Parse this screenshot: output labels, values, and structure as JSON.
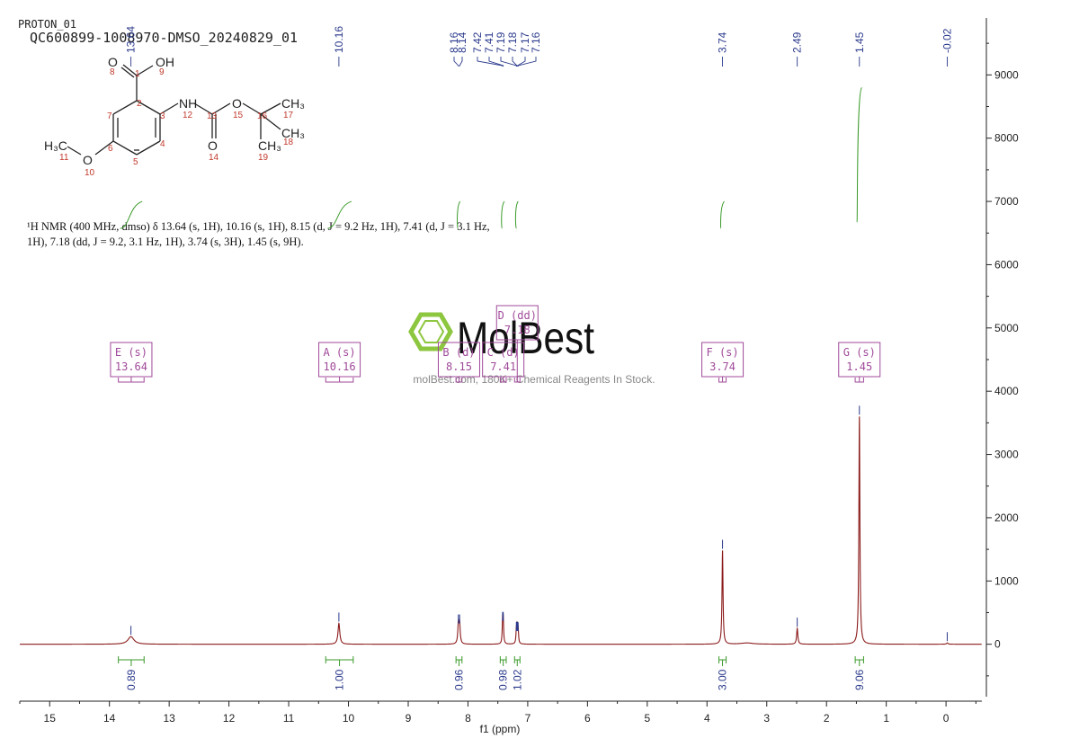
{
  "header": {
    "experiment": "PROTON_01",
    "sample": "QC600899-1008970-DMSO_20240829_01"
  },
  "summary": {
    "line1": "¹H NMR (400 MHz, dmso) δ 13.64 (s, 1H), 10.16 (s, 1H), 8.15 (d, J = 9.2 Hz, 1H), 7.41 (d, J = 3.1 Hz,",
    "line2": "1H), 7.18 (dd, J = 9.2, 3.1 Hz, 1H), 3.74 (s, 3H), 1.45 (s, 9H)."
  },
  "watermark": {
    "logo_text": "MolBest",
    "tagline": "molBest.com, 180K+ Chemical Reagents In Stock.",
    "color": "#8dc63f"
  },
  "structure": {
    "atoms": {
      "carbonyl_O": "O",
      "hydroxyl": "OH",
      "amine": "NH",
      "ester_O": "O",
      "keto_O": "O",
      "methoxy_O": "O",
      "methoxy_C": "H₃C",
      "ch3_a": "CH₃",
      "ch3_b": "CH₃",
      "ch3_c": "CH₃"
    },
    "numbers": [
      "1",
      "2",
      "3",
      "4",
      "5",
      "6",
      "7",
      "8",
      "9",
      "10",
      "11",
      "12",
      "13",
      "14",
      "15",
      "16",
      "17",
      "18",
      "19"
    ]
  },
  "colors": {
    "spectrum": "#8b1a1a",
    "peak_label": "#2b3a8c",
    "integral_curve": "#3a9a2a",
    "multiplet_box": "#a04a9a",
    "atom_number": "#c0392b"
  },
  "chart_data": {
    "type": "line",
    "xlabel": "f1 (ppm)",
    "xlim": [
      15.5,
      -0.6
    ],
    "ylim": [
      -900,
      9900
    ],
    "x_ticks": [
      "15",
      "14",
      "13",
      "12",
      "11",
      "10",
      "9",
      "8",
      "7",
      "6",
      "5",
      "4",
      "3",
      "2",
      "1",
      "0"
    ],
    "y_ticks": [
      "0",
      "1000",
      "2000",
      "3000",
      "4000",
      "5000",
      "6000",
      "7000",
      "8000",
      "9000"
    ],
    "peak_labels": [
      "13.64",
      "10.16",
      "8.16",
      "8.14",
      "7.42",
      "7.41",
      "7.19",
      "7.18",
      "7.17",
      "7.16",
      "3.74",
      "2.49",
      "1.45",
      "-0.02"
    ],
    "peaks": [
      {
        "ppm": 13.64,
        "height": 120,
        "width": 0.06
      },
      {
        "ppm": 10.16,
        "height": 330,
        "width": 0.018
      },
      {
        "ppm": 8.16,
        "height": 300,
        "width": 0.012
      },
      {
        "ppm": 8.14,
        "height": 300,
        "width": 0.012
      },
      {
        "ppm": 7.42,
        "height": 340,
        "width": 0.008
      },
      {
        "ppm": 7.41,
        "height": 340,
        "width": 0.008
      },
      {
        "ppm": 7.19,
        "height": 180,
        "width": 0.008
      },
      {
        "ppm": 7.18,
        "height": 185,
        "width": 0.008
      },
      {
        "ppm": 7.17,
        "height": 180,
        "width": 0.008
      },
      {
        "ppm": 7.16,
        "height": 175,
        "width": 0.008
      },
      {
        "ppm": 3.74,
        "height": 1480,
        "width": 0.01
      },
      {
        "ppm": 3.33,
        "height": 20,
        "width": 0.12
      },
      {
        "ppm": 2.49,
        "height": 250,
        "width": 0.012
      },
      {
        "ppm": 1.45,
        "height": 3600,
        "width": 0.01
      },
      {
        "ppm": -0.02,
        "height": 20,
        "width": 0.015
      }
    ],
    "multiplets": [
      {
        "label": "E (s)",
        "shift": "13.64",
        "range": [
          13.85,
          13.42
        ]
      },
      {
        "label": "A (s)",
        "shift": "10.16",
        "range": [
          10.38,
          9.92
        ]
      },
      {
        "label": "B (d)",
        "shift": "8.15",
        "range": [
          8.2,
          8.1
        ]
      },
      {
        "label": "C (d)",
        "shift": "7.41",
        "range": [
          7.46,
          7.36
        ]
      },
      {
        "label": "D (dd)",
        "shift": "7.18",
        "range": [
          7.22,
          7.13
        ]
      },
      {
        "label": "F (s)",
        "shift": "3.74",
        "range": [
          3.8,
          3.68
        ]
      },
      {
        "label": "G (s)",
        "shift": "1.45",
        "range": [
          1.52,
          1.38
        ]
      }
    ],
    "integrals": [
      {
        "value": "0.89",
        "range": [
          13.85,
          13.42
        ],
        "level": 7.0
      },
      {
        "value": "1.00",
        "range": [
          10.38,
          9.92
        ],
        "level": 7.0
      },
      {
        "value": "0.96",
        "range": [
          8.2,
          8.1
        ],
        "level": 7.0
      },
      {
        "value": "0.98",
        "range": [
          7.46,
          7.36
        ],
        "level": 7.0
      },
      {
        "value": "1.02",
        "range": [
          7.22,
          7.13
        ],
        "level": 7.0
      },
      {
        "value": "3.00",
        "range": [
          3.8,
          3.68
        ],
        "level": 7.0
      },
      {
        "value": "9.06",
        "range": [
          1.52,
          1.38
        ],
        "level": 8.8
      }
    ]
  }
}
